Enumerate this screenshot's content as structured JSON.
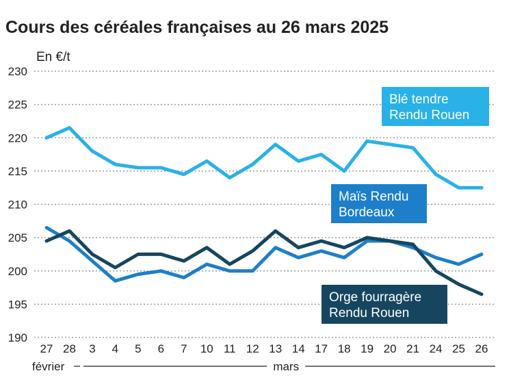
{
  "chart_data": {
    "type": "line",
    "title": "Cours des céréales françaises au 26 mars 2025",
    "ylabel": "En €/t",
    "xlabel": "",
    "ylim": [
      190,
      230
    ],
    "yticks": [
      190,
      195,
      200,
      205,
      210,
      215,
      220,
      225,
      230
    ],
    "grid": true,
    "categories": [
      "27",
      "28",
      "3",
      "4",
      "5",
      "6",
      "7",
      "10",
      "11",
      "12",
      "13",
      "14",
      "17",
      "18",
      "19",
      "20",
      "21",
      "24",
      "25",
      "26"
    ],
    "month_labels": [
      {
        "label": "février",
        "from": "27",
        "to": "28"
      },
      {
        "label": "mars",
        "from": "3",
        "to": "26"
      }
    ],
    "series": [
      {
        "name": "Blé tendre Rendu Rouen",
        "label_lines": [
          "Blé tendre",
          "Rendu Rouen"
        ],
        "color": "#29b1e8",
        "values": [
          220,
          221.5,
          218,
          216,
          215.5,
          215.5,
          214.5,
          216.5,
          214,
          216,
          219,
          216.5,
          217.5,
          215,
          219.5,
          219,
          218.5,
          214.5,
          212.5,
          212.5
        ]
      },
      {
        "name": "Maïs Rendu Bordeaux",
        "label_lines": [
          "Maïs Rendu",
          "Bordeaux"
        ],
        "color": "#1d7fc9",
        "values": [
          206.5,
          204.5,
          201.5,
          198.5,
          199.5,
          200,
          199,
          201,
          200,
          200,
          203.5,
          202,
          203,
          202,
          204.5,
          204.5,
          203.5,
          202,
          201,
          202.5
        ]
      },
      {
        "name": "Orge fourragère Rendu Rouen",
        "label_lines": [
          "Orge fourragère",
          "Rendu Rouen"
        ],
        "color": "#16465f",
        "values": [
          204.5,
          206,
          202.5,
          200.5,
          202.5,
          202.5,
          201.5,
          203.5,
          201,
          203,
          206,
          203.5,
          204.5,
          203.5,
          205,
          204.5,
          204,
          200,
          198,
          196.5
        ]
      }
    ]
  }
}
